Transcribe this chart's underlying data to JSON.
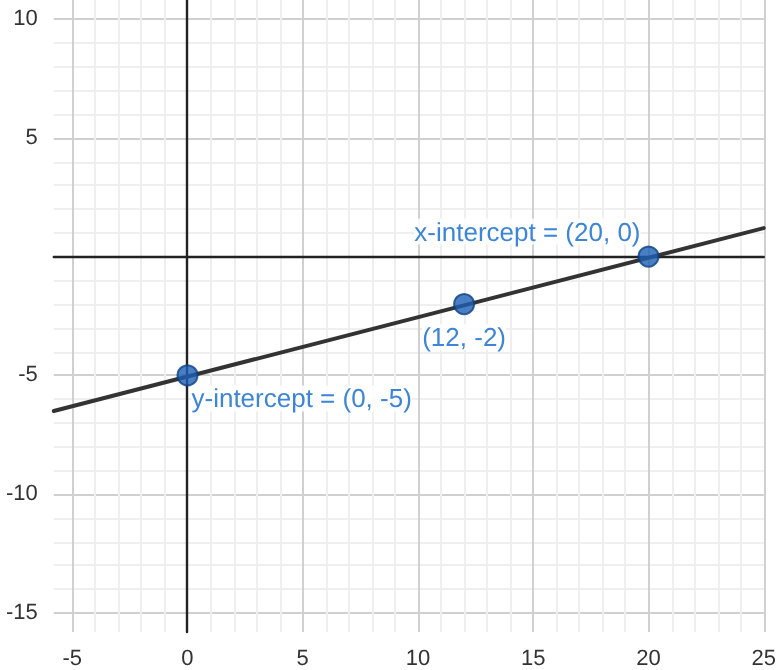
{
  "chart_data": {
    "type": "line",
    "xlim": [
      -5.8,
      25
    ],
    "ylim": [
      -15.8,
      10.8
    ],
    "xticks": [
      -5,
      0,
      5,
      10,
      15,
      20,
      25
    ],
    "yticks": [
      -15,
      -10,
      -5,
      5,
      10
    ],
    "grid": true,
    "series": [
      {
        "color": "#333333",
        "x": [
          -5.8,
          25
        ],
        "values": [
          -6.5,
          1.2
        ],
        "marker": "none",
        "line_style": "solid"
      },
      {
        "type": "scatter",
        "color": "#1e5fb4",
        "x": [
          0,
          12,
          20
        ],
        "values": [
          -5,
          -2,
          0
        ],
        "marker": "circle"
      }
    ],
    "annotations": [
      {
        "text": "x-intercept = (20, 0)",
        "x": 20,
        "y": 0
      },
      {
        "text": "(12, -2)",
        "x": 12,
        "y": -2
      },
      {
        "text": "y-intercept = (0, -5)",
        "x": 0,
        "y": -5
      }
    ]
  }
}
